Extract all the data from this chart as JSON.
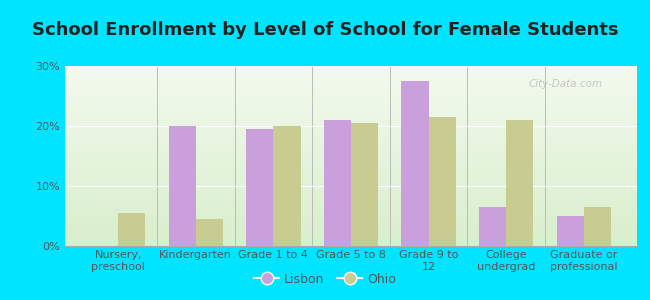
{
  "title": "School Enrollment by Level of School for Female Students",
  "categories": [
    "Nursery,\npreschool",
    "Kindergarten",
    "Grade 1 to 4",
    "Grade 5 to 8",
    "Grade 9 to\n12",
    "College\nundergrad",
    "Graduate or\nprofessional"
  ],
  "lisbon": [
    0,
    20,
    19.5,
    21,
    27.5,
    6.5,
    5
  ],
  "ohio": [
    5.5,
    4.5,
    20,
    20.5,
    21.5,
    21,
    6.5
  ],
  "lisbon_color": "#c9a0dc",
  "ohio_color": "#c8cc90",
  "background_outer": "#00e5ff",
  "background_inner_top": "#f2f9ed",
  "background_inner_bottom": "#d8eecc",
  "ylim": [
    0,
    30
  ],
  "yticks": [
    0,
    10,
    20,
    30
  ],
  "ytick_labels": [
    "0%",
    "10%",
    "20%",
    "30%"
  ],
  "bar_width": 0.35,
  "title_fontsize": 13,
  "tick_fontsize": 8,
  "legend_fontsize": 9,
  "watermark": "City-Data.com"
}
